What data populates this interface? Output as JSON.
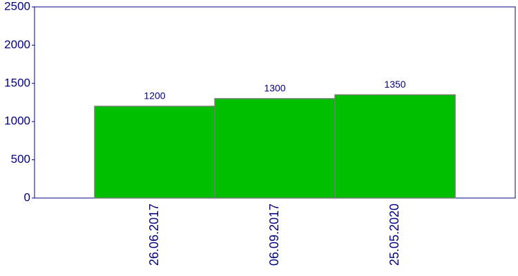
{
  "chart_data": {
    "type": "bar",
    "categories": [
      "26.06.2017",
      "06.09.2017",
      "25.05.2020"
    ],
    "values": [
      1200,
      1300,
      1350
    ],
    "color": "#00bf00",
    "ylim": [
      0,
      2500
    ],
    "yticks": [
      0,
      500,
      1000,
      1500,
      2000,
      2500
    ],
    "grid": false
  }
}
